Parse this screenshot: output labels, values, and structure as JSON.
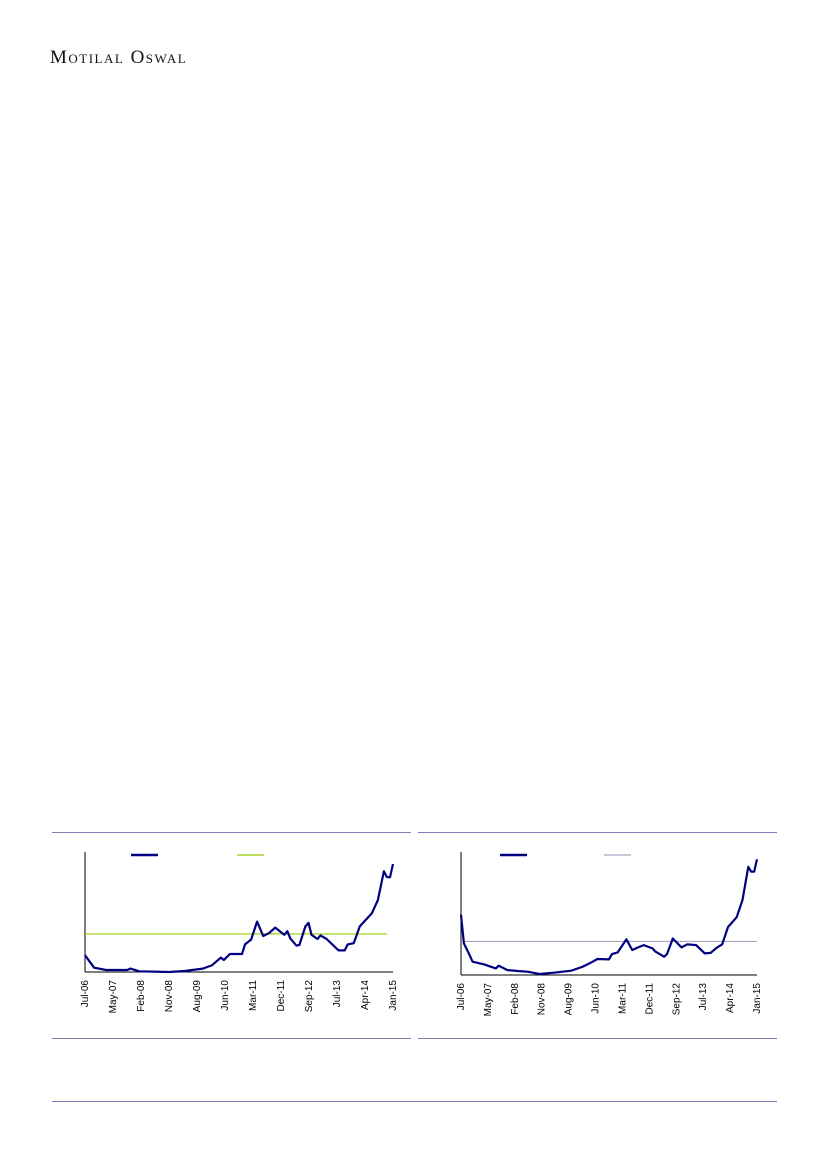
{
  "header": {
    "logo_text": "Motilal Oswal"
  },
  "colors": {
    "series": "#000080",
    "average_chart1": "#99cc00",
    "average_chart2": "#a6a6c8",
    "rules": "#7d7db8"
  },
  "chart_data": [
    {
      "type": "line",
      "title": "",
      "xlabel": "",
      "ylabel": "",
      "x_tick_labels": [
        "Jul-06",
        "May-07",
        "Feb-08",
        "Nov-08",
        "Aug-09",
        "Jun-10",
        "Mar-11",
        "Dec-11",
        "Sep-12",
        "Jul-13",
        "Apr-14",
        "Jan-15"
      ],
      "y_axis_labels_shown": false,
      "ylim": [
        0,
        100
      ],
      "grid": false,
      "legend": "top",
      "series": [
        {
          "x": [
            "2006-07",
            "2006-10",
            "2007-02",
            "2007-09",
            "2007-10",
            "2008-01",
            "2008-11",
            "2009-04",
            "2009-10",
            "2010-01",
            "2010-04",
            "2010-05",
            "2010-07",
            "2010-11",
            "2010-12",
            "2011-02",
            "2011-04",
            "2011-06",
            "2011-08",
            "2011-10",
            "2012-01",
            "2012-02",
            "2012-03",
            "2012-05",
            "2012-06",
            "2012-08",
            "2012-09",
            "2012-10",
            "2012-12",
            "2013-01",
            "2013-03",
            "2013-07",
            "2013-09",
            "2013-10",
            "2013-12",
            "2014-02",
            "2014-06",
            "2014-08",
            "2014-10",
            "2014-11",
            "2014-12",
            "2015-01"
          ],
          "y": [
            14,
            3.6,
            1.7,
            1.7,
            2.8,
            0.6,
            0,
            0.8,
            2.8,
            5.5,
            12,
            10,
            15,
            15,
            23,
            27,
            42,
            30,
            32.5,
            37,
            31,
            34,
            28,
            22,
            22.5,
            38,
            41,
            31,
            27.5,
            30.5,
            27.5,
            18,
            18,
            23,
            24,
            38,
            49,
            60,
            84,
            79,
            79,
            90
          ]
        },
        {
          "type": "average",
          "y": 31.7
        }
      ]
    },
    {
      "type": "line",
      "title": "",
      "xlabel": "",
      "ylabel": "",
      "x_tick_labels": [
        "Jul-06",
        "May-07",
        "Feb-08",
        "Nov-08",
        "Aug-09",
        "Jun-10",
        "Mar-11",
        "Dec-11",
        "Sep-12",
        "Jul-13",
        "Apr-14",
        "Jan-15"
      ],
      "y_axis_labels_shown": false,
      "ylim": [
        0,
        100
      ],
      "grid": false,
      "legend": "top",
      "series": [
        {
          "x": [
            "2006-07",
            "2006-08",
            "2006-10",
            "2006-11",
            "2007-03",
            "2007-07",
            "2007-08",
            "2007-11",
            "2008-03",
            "2008-06",
            "2008-10",
            "2009-03",
            "2009-09",
            "2010-01",
            "2010-04",
            "2010-06",
            "2010-10",
            "2010-11",
            "2011-01",
            "2011-04",
            "2011-06",
            "2011-08",
            "2011-10",
            "2012-01",
            "2012-02",
            "2012-05",
            "2012-06",
            "2012-08",
            "2012-11",
            "2013-01",
            "2013-04",
            "2013-07",
            "2013-09",
            "2013-11",
            "2014-01",
            "2014-03",
            "2014-06",
            "2014-08",
            "2014-10",
            "2014-11",
            "2014-12",
            "2015-01"
          ],
          "y": [
            49,
            25.7,
            16,
            10.8,
            8.6,
            5.4,
            7.6,
            4,
            3.2,
            2.7,
            0.8,
            1.9,
            3.5,
            6.8,
            10.3,
            13,
            12.7,
            17,
            18.4,
            29,
            20.3,
            22.4,
            24.3,
            21.6,
            19,
            14.9,
            17,
            29.7,
            22.4,
            25,
            24.3,
            17.6,
            18,
            22,
            25,
            39,
            47,
            61,
            88,
            84,
            84,
            94
          ]
        },
        {
          "type": "average",
          "y": 27.3
        }
      ]
    }
  ]
}
